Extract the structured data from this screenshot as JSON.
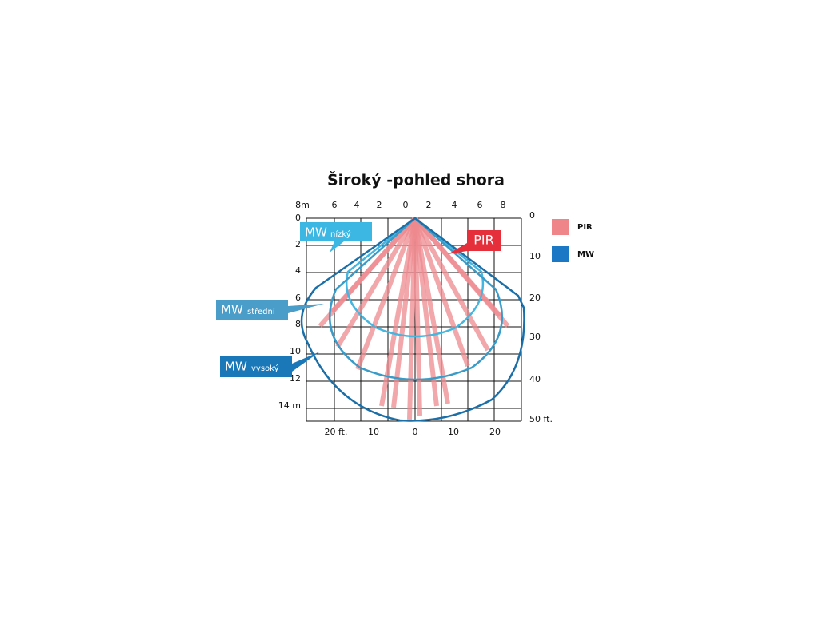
{
  "title": "Široký -pohled shora",
  "top_axis": [
    "8m",
    "6",
    "4",
    "2",
    "0",
    "2",
    "4",
    "6",
    "8"
  ],
  "left_axis": [
    "0",
    "2",
    "4",
    "6",
    "8",
    "10",
    "12",
    "14 m"
  ],
  "right_axis": [
    "0",
    "10",
    "20",
    "30",
    "40",
    "50 ft."
  ],
  "bottom_axis": [
    "20 ft.",
    "10",
    "0",
    "10",
    "20"
  ],
  "callouts": [
    {
      "main": "MW",
      "sub": "nízký"
    },
    {
      "main": "PIR"
    },
    {
      "main": "MW",
      "sub": "střední"
    },
    {
      "main": "MW",
      "sub": "vysoký"
    }
  ],
  "legend": [
    "PIR",
    "MW"
  ]
}
